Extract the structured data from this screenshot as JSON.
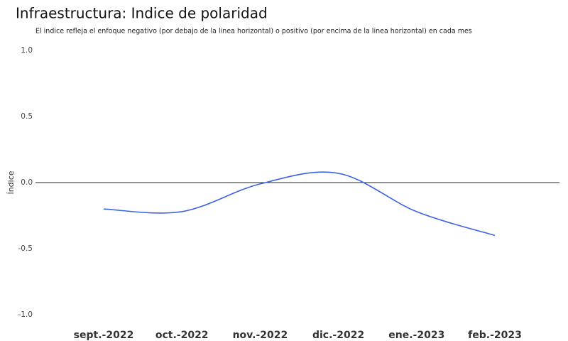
{
  "chart_data": {
    "type": "line",
    "title": "Infraestructura: Indice de polaridad",
    "subtitle": "El indice refleja el enfoque negativo (por debajo de la linea horizontal) o positivo (por encima de la linea horizontal) en cada mes",
    "y_label": "Índice",
    "categories": [
      "sept.-2022",
      "oct.-2022",
      "nov.-2022",
      "dic.-2022",
      "ene.-2023",
      "feb.-2023"
    ],
    "series": [
      {
        "name": "Índice",
        "color": "#3a62e4",
        "values": [
          -0.2,
          -0.22,
          -0.01,
          0.07,
          -0.22,
          -0.4
        ]
      }
    ],
    "ylim": [
      -1.0,
      1.0
    ],
    "yticks": [
      {
        "value": 1.0,
        "label": "1.0"
      },
      {
        "value": 0.5,
        "label": "0.5"
      },
      {
        "value": 0.0,
        "label": "0.0"
      },
      {
        "value": -0.5,
        "label": "-0.5"
      },
      {
        "value": -1.0,
        "label": "-1.0"
      }
    ],
    "reference_line": 0,
    "grid": false
  }
}
